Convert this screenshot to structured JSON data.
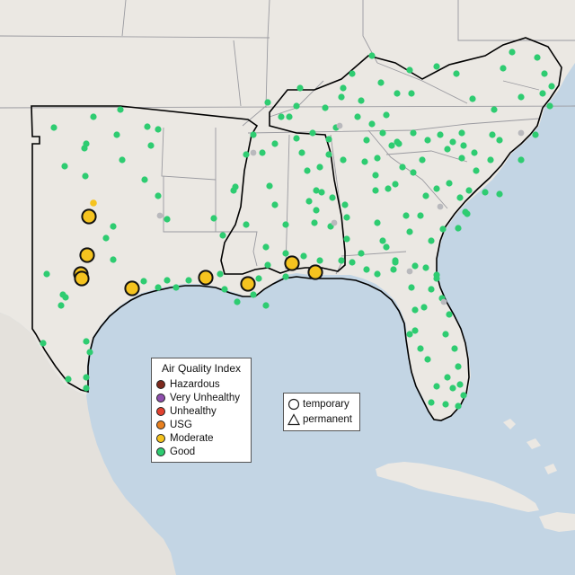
{
  "map": {
    "colors": {
      "land": "#ebe8e3",
      "land_alt": "#e4e1dc",
      "water": "#c3d5e4",
      "state_border": "#9a9aa0",
      "region_border": "#000000"
    },
    "sites": {
      "circle_sites_category": "Good",
      "large_markers_category": "Moderate",
      "grey_markers": "no data"
    }
  },
  "aqi_legend": {
    "title": "Air Quality Index",
    "items": [
      {
        "label": "Hazardous",
        "color": "#7e2a1e"
      },
      {
        "label": "Very Unhealthy",
        "color": "#8f4fae"
      },
      {
        "label": "Unhealthy",
        "color": "#e2412f"
      },
      {
        "label": "USG",
        "color": "#e8801f"
      },
      {
        "label": "Moderate",
        "color": "#f5c31f"
      },
      {
        "label": "Good",
        "color": "#2ecc71"
      }
    ]
  },
  "site_legend": {
    "items": [
      {
        "label": "temporary",
        "shape": "circle"
      },
      {
        "label": "permanent",
        "shape": "triangle"
      }
    ]
  }
}
